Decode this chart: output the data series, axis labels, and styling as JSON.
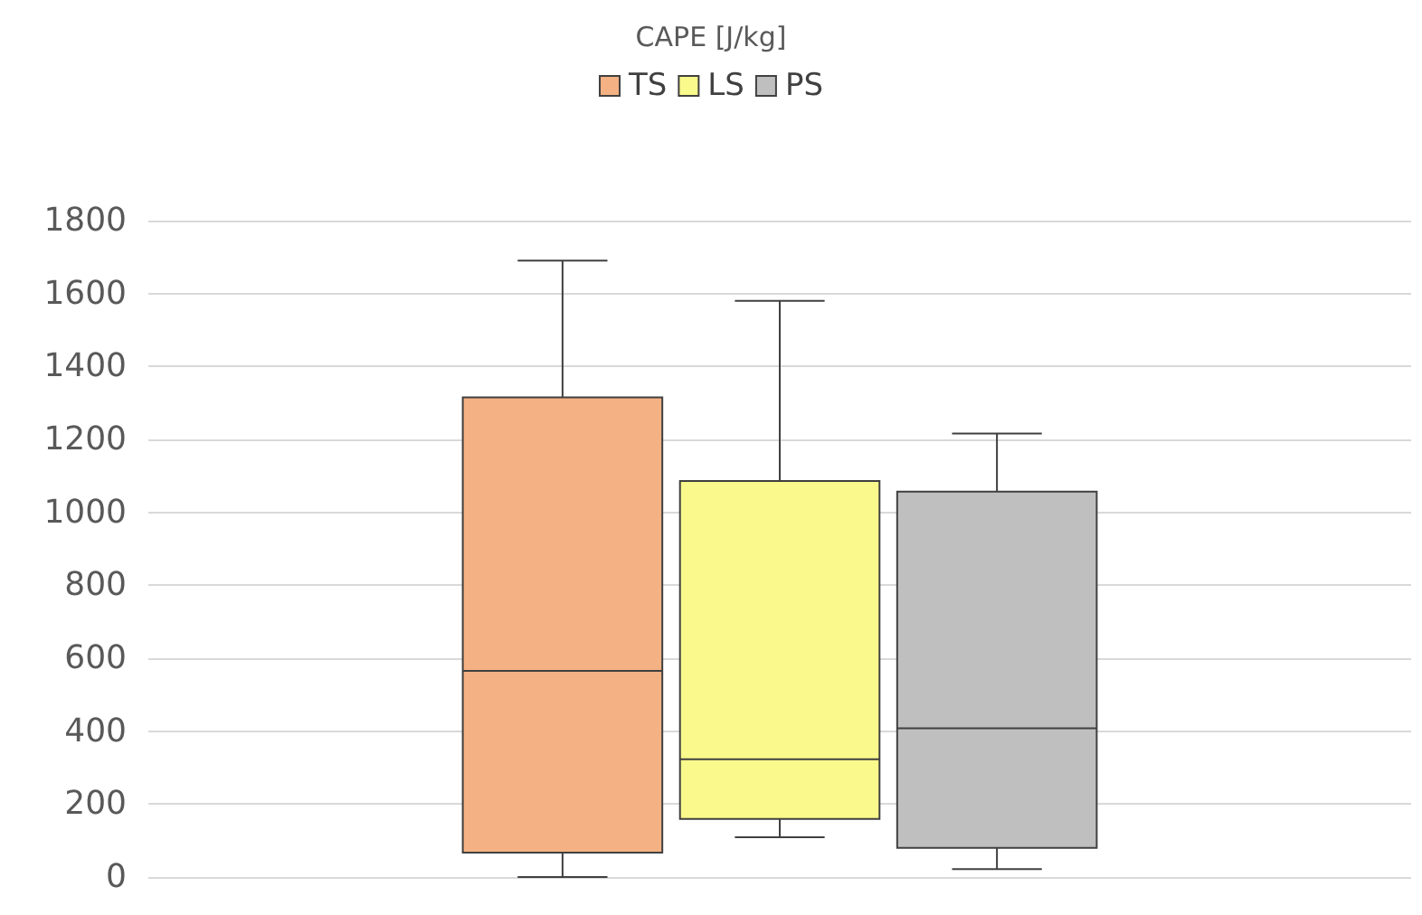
{
  "chart_data": {
    "type": "box",
    "title": "CAPE [J/kg]",
    "categories": [
      null
    ],
    "series": [
      {
        "name": "TS",
        "color": "#f4b183",
        "boxes": [
          {
            "low": 0,
            "q1": 67,
            "median": 565,
            "q3": 1315,
            "high": 1690
          }
        ]
      },
      {
        "name": "LS",
        "color": "#f9f98c",
        "boxes": [
          {
            "low": 109,
            "q1": 159,
            "median": 323,
            "q3": 1086,
            "high": 1580
          }
        ]
      },
      {
        "name": "PS",
        "color": "#bfbfbf",
        "boxes": [
          {
            "low": 22,
            "q1": 80,
            "median": 408,
            "q3": 1057,
            "high": 1216
          }
        ]
      }
    ],
    "ylim": [
      0,
      1800
    ],
    "yticks": [
      0,
      200,
      400,
      600,
      800,
      1000,
      1200,
      1400,
      1600,
      1800
    ],
    "grid": "y",
    "legend": "top"
  }
}
